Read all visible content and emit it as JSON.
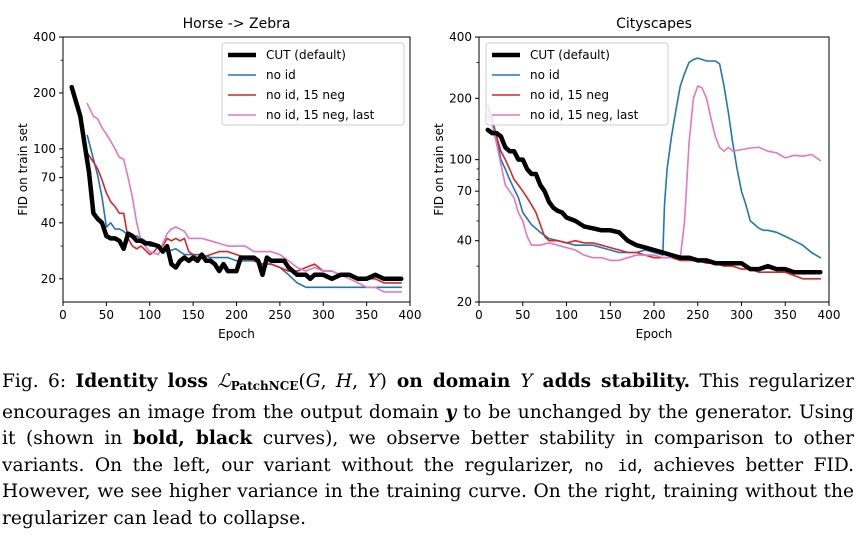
{
  "chart_data": [
    {
      "type": "line",
      "title": "Horse -> Zebra",
      "xlabel": "Epoch",
      "ylabel": "FID on train set",
      "xlim": [
        0,
        400
      ],
      "ylim": [
        15,
        400
      ],
      "yscale": "log",
      "xticks": [
        0,
        50,
        100,
        150,
        200,
        250,
        300,
        350,
        400
      ],
      "yticks": [
        20,
        40,
        70,
        100,
        200,
        400
      ],
      "legend_position": "top-right",
      "series": [
        {
          "name": "CUT (default)",
          "color": "#000000",
          "style": "bold",
          "x": [
            10,
            20,
            25,
            30,
            35,
            40,
            45,
            50,
            55,
            60,
            65,
            70,
            75,
            80,
            85,
            90,
            95,
            100,
            110,
            115,
            120,
            125,
            130,
            135,
            140,
            145,
            150,
            155,
            160,
            165,
            170,
            175,
            180,
            185,
            190,
            195,
            200,
            205,
            210,
            215,
            220,
            225,
            230,
            235,
            240,
            245,
            250,
            255,
            260,
            265,
            270,
            280,
            285,
            290,
            295,
            300,
            310,
            320,
            330,
            340,
            350,
            360,
            370,
            380,
            390
          ],
          "y": [
            215,
            150,
            105,
            75,
            45,
            42,
            40,
            34,
            33,
            33,
            32,
            29,
            35,
            34,
            32,
            32,
            31,
            31,
            30,
            28,
            30,
            24,
            23,
            25,
            26,
            25,
            26,
            25,
            27,
            25,
            25,
            24,
            22,
            24,
            22,
            22,
            22,
            26,
            26,
            26,
            26,
            25,
            21,
            26,
            25,
            25,
            25,
            25,
            23,
            22,
            21,
            21,
            20,
            21,
            21,
            21,
            20,
            21,
            21,
            20,
            20,
            21,
            20,
            20,
            20
          ]
        },
        {
          "name": "no id",
          "color": "#1f77b4",
          "style": "thin",
          "x": [
            28,
            40,
            45,
            50,
            55,
            60,
            65,
            70,
            75,
            80,
            85,
            90,
            95,
            100,
            110,
            120,
            130,
            140,
            150,
            160,
            170,
            180,
            190,
            200,
            210,
            220,
            230,
            240,
            250,
            260,
            270,
            280,
            290,
            300,
            310,
            320,
            330,
            340,
            350,
            360,
            370,
            380,
            390
          ],
          "y": [
            118,
            72,
            55,
            38,
            40,
            37,
            37,
            36,
            34,
            34,
            34,
            33,
            32,
            30,
            30,
            28,
            29,
            27,
            27,
            27,
            26,
            26,
            26,
            25,
            25,
            25,
            24,
            24,
            23,
            21,
            19,
            18,
            18,
            18,
            18,
            18,
            18,
            18,
            18,
            18,
            18,
            18,
            18
          ]
        },
        {
          "name": "no id, 15 neg",
          "color": "#d62728",
          "style": "thin",
          "x": [
            28,
            35,
            40,
            45,
            50,
            55,
            60,
            65,
            70,
            75,
            80,
            85,
            90,
            100,
            105,
            110,
            115,
            120,
            125,
            130,
            135,
            140,
            145,
            150,
            155,
            160,
            170,
            180,
            190,
            200,
            210,
            220,
            230,
            240,
            250,
            260,
            270,
            280,
            290,
            300,
            310,
            320,
            330,
            340,
            350,
            360,
            370,
            380,
            390
          ],
          "y": [
            95,
            85,
            78,
            68,
            58,
            52,
            49,
            45,
            45,
            33,
            30,
            29,
            30,
            27,
            28,
            30,
            30,
            33,
            32,
            33,
            32,
            33,
            28,
            27,
            26,
            26,
            27,
            28,
            28,
            27,
            26,
            25,
            24,
            24,
            23,
            22,
            22,
            23,
            24,
            22,
            22,
            21,
            21,
            20,
            20,
            20,
            19,
            19,
            19
          ]
        },
        {
          "name": "no id, 15 neg, last",
          "color": "#e377c2",
          "style": "thin",
          "x": [
            28,
            35,
            40,
            45,
            50,
            55,
            60,
            65,
            70,
            75,
            80,
            85,
            90,
            95,
            100,
            110,
            120,
            125,
            130,
            135,
            140,
            145,
            150,
            160,
            170,
            180,
            190,
            200,
            210,
            220,
            230,
            240,
            250,
            260,
            270,
            280,
            290,
            300,
            310,
            320,
            330,
            340,
            350,
            360,
            370,
            380,
            390
          ],
          "y": [
            175,
            150,
            145,
            130,
            120,
            110,
            100,
            90,
            88,
            70,
            55,
            40,
            32,
            30,
            28,
            27,
            35,
            37,
            38,
            37,
            36,
            33,
            33,
            33,
            32,
            31,
            30,
            30,
            30,
            28,
            28,
            28,
            27,
            25,
            23,
            22,
            23,
            22,
            22,
            21,
            20,
            19,
            18,
            18,
            17,
            17,
            17
          ]
        }
      ]
    },
    {
      "type": "line",
      "title": "Cityscapes",
      "xlabel": "Epoch",
      "ylabel": "FID on train set",
      "xlim": [
        0,
        400
      ],
      "ylim": [
        20,
        400
      ],
      "yscale": "log",
      "xticks": [
        0,
        50,
        100,
        150,
        200,
        250,
        300,
        350,
        400
      ],
      "yticks": [
        20,
        40,
        70,
        100,
        200,
        400
      ],
      "legend_position": "top-left",
      "series": [
        {
          "name": "CUT (default)",
          "color": "#000000",
          "style": "bold",
          "x": [
            10,
            15,
            20,
            25,
            30,
            35,
            40,
            45,
            50,
            55,
            60,
            65,
            70,
            75,
            80,
            85,
            90,
            95,
            100,
            110,
            120,
            130,
            140,
            150,
            160,
            170,
            180,
            190,
            200,
            210,
            220,
            230,
            240,
            250,
            260,
            270,
            280,
            290,
            300,
            310,
            320,
            330,
            340,
            350,
            360,
            370,
            380,
            390
          ],
          "y": [
            140,
            135,
            135,
            130,
            115,
            110,
            110,
            100,
            100,
            90,
            85,
            85,
            75,
            70,
            62,
            58,
            56,
            55,
            52,
            50,
            47,
            46,
            45,
            45,
            44,
            40,
            38,
            37,
            36,
            35,
            34,
            33,
            33,
            32,
            32,
            31,
            31,
            31,
            31,
            29,
            29,
            30,
            29,
            29,
            28,
            28,
            28,
            28
          ]
        },
        {
          "name": "no id",
          "color": "#1f77b4",
          "style": "thin",
          "x": [
            10,
            15,
            20,
            25,
            30,
            35,
            40,
            45,
            50,
            60,
            70,
            80,
            90,
            100,
            110,
            120,
            130,
            140,
            150,
            160,
            170,
            180,
            190,
            200,
            210,
            212,
            215,
            220,
            225,
            230,
            235,
            240,
            245,
            250,
            255,
            260,
            270,
            275,
            280,
            285,
            290,
            295,
            300,
            305,
            310,
            320,
            325,
            330,
            340,
            350,
            360,
            370,
            380,
            390
          ],
          "y": [
            185,
            160,
            130,
            100,
            90,
            80,
            72,
            65,
            55,
            48,
            44,
            41,
            40,
            39,
            38,
            38,
            38,
            37,
            36,
            35,
            35,
            35,
            36,
            35,
            34,
            60,
            90,
            130,
            175,
            230,
            265,
            300,
            310,
            315,
            310,
            305,
            305,
            295,
            230,
            170,
            120,
            90,
            70,
            60,
            50,
            46,
            45,
            45,
            44,
            42,
            40,
            38,
            35,
            33
          ]
        },
        {
          "name": "no id, 15 neg",
          "color": "#d62728",
          "style": "thin",
          "x": [
            10,
            15,
            20,
            25,
            30,
            35,
            40,
            45,
            50,
            55,
            60,
            65,
            70,
            75,
            80,
            90,
            100,
            110,
            120,
            130,
            140,
            150,
            160,
            170,
            180,
            190,
            200,
            210,
            220,
            230,
            240,
            250,
            260,
            270,
            280,
            290,
            300,
            310,
            320,
            330,
            340,
            350,
            360,
            370,
            380,
            390
          ],
          "y": [
            165,
            150,
            130,
            110,
            100,
            90,
            80,
            75,
            70,
            65,
            60,
            55,
            48,
            42,
            40,
            40,
            39,
            40,
            39,
            39,
            38,
            37,
            36,
            35,
            35,
            34,
            33,
            33,
            33,
            32,
            32,
            32,
            31,
            31,
            30,
            30,
            29,
            29,
            28,
            28,
            28,
            28,
            27,
            26,
            26,
            26
          ]
        },
        {
          "name": "no id, 15 neg, last",
          "color": "#e377c2",
          "style": "thin",
          "x": [
            10,
            15,
            20,
            25,
            30,
            35,
            40,
            45,
            50,
            55,
            60,
            70,
            80,
            90,
            100,
            110,
            120,
            130,
            140,
            150,
            160,
            170,
            180,
            190,
            200,
            210,
            220,
            230,
            235,
            240,
            245,
            250,
            255,
            260,
            265,
            270,
            275,
            280,
            285,
            290,
            300,
            310,
            320,
            330,
            340,
            350,
            360,
            370,
            380,
            390
          ],
          "y": [
            180,
            150,
            120,
            95,
            75,
            70,
            65,
            55,
            50,
            42,
            38,
            38,
            39,
            38,
            37,
            36,
            34,
            33,
            33,
            32,
            32,
            33,
            34,
            34,
            34,
            33,
            33,
            33,
            50,
            120,
            200,
            230,
            225,
            200,
            160,
            130,
            115,
            110,
            115,
            110,
            112,
            114,
            115,
            110,
            108,
            102,
            105,
            104,
            106,
            99
          ]
        }
      ]
    }
  ],
  "caption": {
    "fig_label": "Fig. 6:",
    "bold_head_1": "Identity loss",
    "loss_symbol": "ℒ",
    "loss_subscript": "PatchNCE",
    "loss_args_open": "(",
    "arg_g": "G",
    "comma1": ", ",
    "arg_h": "H",
    "comma2": ", ",
    "arg_y": "Y",
    "loss_args_close": ")",
    "bold_head_2": " on domain ",
    "domain_y": "Y",
    "bold_head_3": " adds stability.",
    "text_1": " This regularizer encourages an image from the output domain ",
    "var_y": "y",
    "text_2": " to be unchanged by the generator. Using it (shown in ",
    "bold_black": "bold, black",
    "text_3": " curves), we observe better stability in comparison to other variants. On the left, our variant without the regularizer, ",
    "code_no_id": "no id",
    "text_4": ", achieves better FID. However, we see higher variance in the training curve. On the right, training without the regularizer can lead to collapse."
  }
}
